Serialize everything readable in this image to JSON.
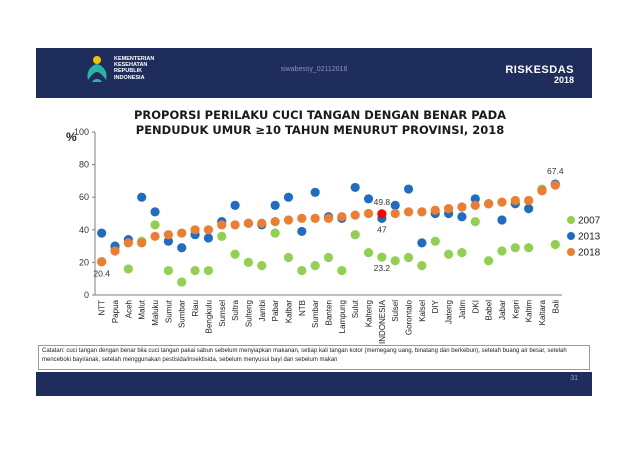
{
  "header": {
    "logo_text": "KEMENTERIAN\nKESEHATAN\nREPUBLIK\nINDONESIA",
    "watermark": "siwabessy_02112018",
    "brand_name": "RISKESDAS",
    "brand_year": "2018"
  },
  "title_line1": "PROPORSI PERILAKU CUCI TANGAN DENGAN BENAR PADA",
  "title_line2": "PENDUDUK UMUR ≥10 TAHUN MENURUT PROVINSI, 2018",
  "note": "Catatan: cuci tangan dengan benar bila cuci tangan pakai sabun sebelum menyiapkan makanan, setiap kali tangan kotor (memegang uang, binatang dan berkebun), setelah buang air besar, setelah menceboki bayi/anak, setelah menggunakan pestisida/insektisida, sebelum menyusui bayi dan sebelum makan",
  "page_number": "31",
  "colors": {
    "header_bg": "#1e2d5c",
    "s2007": "#92d050",
    "s2013": "#1f6dc2",
    "s2018": "#ed7d31",
    "highlight": "#ff0000"
  },
  "chart_data": {
    "type": "scatter",
    "ylabel": "%",
    "ylim": [
      0,
      100
    ],
    "yticks": [
      0,
      20,
      40,
      60,
      80,
      100
    ],
    "legend_position": "right",
    "categories": [
      "NTT",
      "Papua",
      "Aceh",
      "Malut",
      "Maluku",
      "Sumut",
      "Sumbar",
      "Riau",
      "Bengkulu",
      "Sumsel",
      "Sultra",
      "Sulteng",
      "Jambi",
      "Pabar",
      "Kalbar",
      "NTB",
      "Sumbar",
      "Banten",
      "Lampung",
      "Sulut",
      "Kalteng",
      "INDONESIA",
      "Sulsel",
      "Gorontalo",
      "Kalsel",
      "DIY",
      "Jateng",
      "Jatim",
      "DKI",
      "Babel",
      "Jabar",
      "Kepri",
      "Kaltim",
      "Kaltara",
      "Bali"
    ],
    "series": [
      {
        "name": "2007",
        "values": [
          20.4,
          28,
          16,
          33,
          43,
          15,
          8,
          15,
          15,
          36,
          25,
          20,
          18,
          38,
          23,
          15,
          18,
          23,
          15,
          37,
          26,
          23.2,
          21,
          23,
          18,
          33,
          25,
          26,
          45,
          21,
          27,
          29,
          29,
          65,
          31
        ]
      },
      {
        "name": "2013",
        "values": [
          38,
          30,
          34,
          60,
          51,
          33,
          29,
          37,
          35,
          45,
          55,
          44,
          43,
          55,
          60,
          39,
          63,
          48,
          47,
          66,
          59,
          47,
          55,
          65,
          32,
          50,
          50,
          48,
          59,
          56,
          46,
          56,
          53,
          64,
          68
        ]
      },
      {
        "name": "2018",
        "values": [
          20.4,
          27,
          32,
          32,
          36,
          37,
          38,
          40,
          40,
          43,
          43,
          44,
          44,
          45,
          46,
          47,
          47,
          47,
          48,
          49,
          50,
          49.8,
          50,
          51,
          51,
          52,
          53,
          54,
          55,
          56,
          57,
          58,
          58,
          64,
          67.4
        ]
      }
    ],
    "highlight_index": 21,
    "data_labels": [
      {
        "series": "2018",
        "index": 0,
        "text": "20.4"
      },
      {
        "series": "2018",
        "index": 21,
        "text": "49.8"
      },
      {
        "series": "2013",
        "index": 21,
        "text": "47"
      },
      {
        "series": "2007",
        "index": 21,
        "text": "23.2"
      },
      {
        "series": "2018",
        "index": 34,
        "text": "67.4"
      }
    ]
  }
}
